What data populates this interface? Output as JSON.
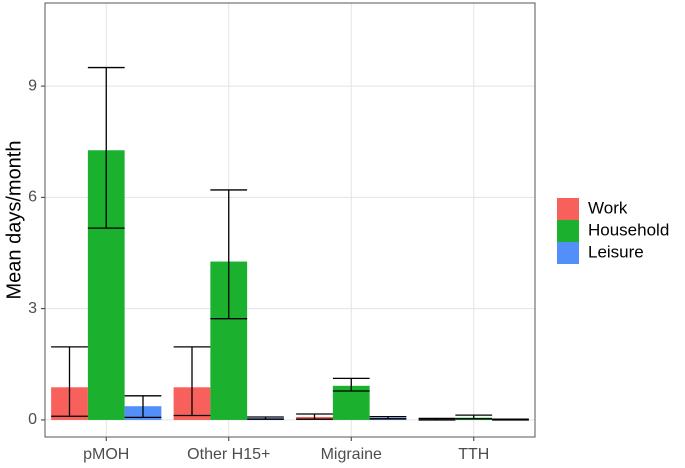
{
  "chart_data": {
    "type": "bar",
    "y_label": "Mean days/month",
    "categories": [
      "pMOH",
      "Other H15+",
      "Migraine",
      "TTH"
    ],
    "series": [
      {
        "name": "Work",
        "color": "#f8615b",
        "values": [
          0.88,
          0.88,
          0.08,
          0.02
        ],
        "lower": [
          0.1,
          0.12,
          0.02,
          0
        ],
        "upper": [
          1.97,
          1.97,
          0.16,
          0.04
        ]
      },
      {
        "name": "Household",
        "color": "#1bb02d",
        "values": [
          7.27,
          4.27,
          0.92,
          0.06
        ],
        "lower": [
          5.17,
          2.73,
          0.78,
          0.03
        ],
        "upper": [
          9.5,
          6.2,
          1.12,
          0.13
        ]
      },
      {
        "name": "Leisure",
        "color": "#528ff8",
        "values": [
          0.37,
          0.05,
          0.06,
          0.01
        ],
        "lower": [
          0.07,
          0.02,
          0.03,
          0
        ],
        "upper": [
          0.65,
          0.08,
          0.09,
          0.02
        ]
      }
    ],
    "ylim": [
      -0.46,
      11.24
    ],
    "yticks": [
      0,
      3,
      6,
      9
    ],
    "grid": true,
    "legend": "right"
  }
}
